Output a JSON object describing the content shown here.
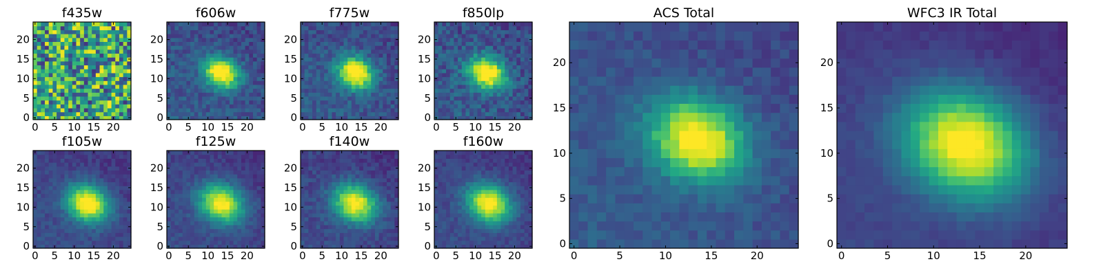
{
  "chart_data": {
    "type": "heatmap",
    "colormap": "viridis",
    "xlim": [
      0,
      24
    ],
    "ylim": [
      0,
      24
    ],
    "panels": [
      {
        "title": "f435w",
        "center": [
          13,
          11
        ],
        "sigma": 3.2,
        "noise": 1.0,
        "bg": 0.5,
        "peak": 0.0,
        "xticks": [
          "0",
          "5",
          "10",
          "15",
          "20"
        ],
        "yticks": [
          "0",
          "5",
          "10",
          "15",
          "20"
        ]
      },
      {
        "title": "f606w",
        "center": [
          13.5,
          11.5
        ],
        "sigma": 2.8,
        "noise": 0.1,
        "bg": 0.3,
        "peak": 0.85,
        "xticks": [
          "0",
          "5",
          "10",
          "15",
          "20"
        ],
        "yticks": [
          "0",
          "5",
          "10",
          "15",
          "20"
        ]
      },
      {
        "title": "f775w",
        "center": [
          13.5,
          11.5
        ],
        "sigma": 2.9,
        "noise": 0.1,
        "bg": 0.3,
        "peak": 0.85,
        "xticks": [
          "0",
          "5",
          "10",
          "15",
          "20"
        ],
        "yticks": [
          "0",
          "5",
          "10",
          "15",
          "20"
        ]
      },
      {
        "title": "f850lp",
        "center": [
          13,
          11.5
        ],
        "sigma": 3.0,
        "noise": 0.12,
        "bg": 0.3,
        "peak": 0.85,
        "xticks": [
          "0",
          "5",
          "10",
          "15",
          "20"
        ],
        "yticks": [
          "0",
          "5",
          "10",
          "15",
          "20"
        ]
      },
      {
        "title": "f105w",
        "center": [
          13.5,
          11
        ],
        "sigma": 3.4,
        "noise": 0.06,
        "bg": 0.25,
        "peak": 0.85,
        "xticks": [
          "0",
          "5",
          "10",
          "15",
          "20"
        ],
        "yticks": [
          "0",
          "5",
          "10",
          "15",
          "20"
        ]
      },
      {
        "title": "f125w",
        "center": [
          13.5,
          11
        ],
        "sigma": 3.5,
        "noise": 0.06,
        "bg": 0.25,
        "peak": 0.8,
        "xticks": [
          "0",
          "5",
          "10",
          "15",
          "20"
        ],
        "yticks": [
          "0",
          "5",
          "10",
          "15",
          "20"
        ]
      },
      {
        "title": "f140w",
        "center": [
          13.5,
          11
        ],
        "sigma": 3.5,
        "noise": 0.07,
        "bg": 0.25,
        "peak": 0.8,
        "xticks": [
          "0",
          "5",
          "10",
          "15",
          "20"
        ],
        "yticks": [
          "0",
          "5",
          "10",
          "15",
          "20"
        ]
      },
      {
        "title": "f160w",
        "center": [
          13.5,
          11
        ],
        "sigma": 3.5,
        "noise": 0.06,
        "bg": 0.25,
        "peak": 0.82,
        "xticks": [
          "0",
          "5",
          "10",
          "15",
          "20"
        ],
        "yticks": [
          "0",
          "5",
          "10",
          "15",
          "20"
        ]
      },
      {
        "title": "ACS Total",
        "center": [
          13.5,
          11.5
        ],
        "sigma": 3.2,
        "noise": 0.06,
        "bg": 0.3,
        "peak": 0.8,
        "xticks": [
          "0",
          "5",
          "10",
          "15",
          "20"
        ],
        "yticks": [
          "0",
          "5",
          "10",
          "15",
          "20"
        ]
      },
      {
        "title": "WFC3 IR Total",
        "center": [
          13.5,
          11
        ],
        "sigma": 4.2,
        "noise": 0.03,
        "bg": 0.22,
        "peak": 0.85,
        "xticks": [
          "0",
          "5",
          "10",
          "15",
          "20"
        ],
        "yticks": [
          "0",
          "5",
          "10",
          "15",
          "20"
        ]
      }
    ]
  }
}
